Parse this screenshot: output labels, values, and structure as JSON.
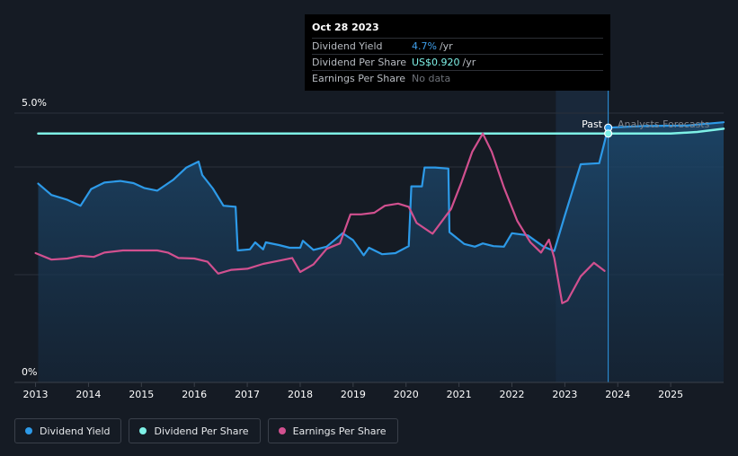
{
  "tooltip": {
    "date": "Oct 28 2023",
    "rows": [
      {
        "label": "Dividend Yield",
        "value": "4.7%",
        "unit": "/yr"
      },
      {
        "label": "Dividend Per Share",
        "value": "US$0.920",
        "unit": "/yr"
      },
      {
        "label": "Earnings Per Share",
        "value": "No data"
      }
    ]
  },
  "annotations": {
    "past": "Past",
    "forecast": "Analysts Forecasts"
  },
  "legend": [
    {
      "label": "Dividend Yield",
      "color": "#2d9ae8"
    },
    {
      "label": "Dividend Per Share",
      "color": "#7ef0e6"
    },
    {
      "label": "Earnings Per Share",
      "color": "#d1508f"
    }
  ],
  "chart_data": {
    "type": "line",
    "title": "",
    "xlabel": "",
    "ylabel": "",
    "x_ticks": [
      "2013",
      "2014",
      "2015",
      "2016",
      "2017",
      "2018",
      "2019",
      "2020",
      "2021",
      "2022",
      "2023",
      "2024",
      "2025"
    ],
    "y_ticks": [
      "5.0%",
      "0%"
    ],
    "xlim": [
      2012.6,
      2026.0
    ],
    "ylim": [
      0,
      5.0
    ],
    "past_forecast_split": 2023.82,
    "forecast_region_start": 2022.83,
    "series": [
      {
        "name": "Dividend Yield",
        "color": "#2d9ae8",
        "area": true,
        "points": [
          [
            2013.05,
            3.69
          ],
          [
            2013.3,
            3.48
          ],
          [
            2013.6,
            3.39
          ],
          [
            2013.85,
            3.28
          ],
          [
            2014.05,
            3.59
          ],
          [
            2014.3,
            3.71
          ],
          [
            2014.6,
            3.74
          ],
          [
            2014.85,
            3.7
          ],
          [
            2015.05,
            3.61
          ],
          [
            2015.3,
            3.56
          ],
          [
            2015.6,
            3.76
          ],
          [
            2015.85,
            3.99
          ],
          [
            2016.08,
            4.1
          ],
          [
            2016.15,
            3.85
          ],
          [
            2016.35,
            3.6
          ],
          [
            2016.55,
            3.28
          ],
          [
            2016.78,
            3.26
          ],
          [
            2016.82,
            2.45
          ],
          [
            2017.05,
            2.47
          ],
          [
            2017.15,
            2.6
          ],
          [
            2017.3,
            2.47
          ],
          [
            2017.35,
            2.6
          ],
          [
            2017.6,
            2.55
          ],
          [
            2017.8,
            2.5
          ],
          [
            2018.0,
            2.5
          ],
          [
            2018.05,
            2.63
          ],
          [
            2018.25,
            2.46
          ],
          [
            2018.5,
            2.52
          ],
          [
            2018.8,
            2.77
          ],
          [
            2019.0,
            2.64
          ],
          [
            2019.2,
            2.36
          ],
          [
            2019.3,
            2.5
          ],
          [
            2019.55,
            2.38
          ],
          [
            2019.8,
            2.4
          ],
          [
            2020.05,
            2.53
          ],
          [
            2020.1,
            3.64
          ],
          [
            2020.3,
            3.64
          ],
          [
            2020.35,
            3.99
          ],
          [
            2020.55,
            3.99
          ],
          [
            2020.8,
            3.97
          ],
          [
            2020.82,
            2.79
          ],
          [
            2021.1,
            2.57
          ],
          [
            2021.3,
            2.52
          ],
          [
            2021.45,
            2.58
          ],
          [
            2021.65,
            2.53
          ],
          [
            2021.85,
            2.52
          ],
          [
            2022.0,
            2.77
          ],
          [
            2022.3,
            2.73
          ],
          [
            2022.6,
            2.52
          ],
          [
            2022.8,
            2.44
          ],
          [
            2023.0,
            3.1
          ],
          [
            2023.3,
            4.05
          ],
          [
            2023.65,
            4.07
          ],
          [
            2023.82,
            4.73
          ],
          [
            2024.5,
            4.76
          ],
          [
            2025.3,
            4.77
          ],
          [
            2026.0,
            4.83
          ]
        ]
      },
      {
        "name": "Dividend Per Share",
        "color": "#7ef0e6",
        "area": false,
        "points": [
          [
            2013.05,
            4.62
          ],
          [
            2023.82,
            4.62
          ],
          [
            2025.0,
            4.62
          ],
          [
            2025.5,
            4.65
          ],
          [
            2026.0,
            4.71
          ]
        ]
      },
      {
        "name": "Earnings Per Share",
        "color": "#d1508f",
        "area": false,
        "points": [
          [
            2013.0,
            2.4
          ],
          [
            2013.3,
            2.28
          ],
          [
            2013.6,
            2.3
          ],
          [
            2013.85,
            2.35
          ],
          [
            2014.1,
            2.33
          ],
          [
            2014.3,
            2.41
          ],
          [
            2014.65,
            2.45
          ],
          [
            2015.0,
            2.45
          ],
          [
            2015.3,
            2.45
          ],
          [
            2015.5,
            2.41
          ],
          [
            2015.7,
            2.31
          ],
          [
            2016.0,
            2.3
          ],
          [
            2016.25,
            2.24
          ],
          [
            2016.45,
            2.02
          ],
          [
            2016.7,
            2.09
          ],
          [
            2017.0,
            2.11
          ],
          [
            2017.3,
            2.2
          ],
          [
            2017.6,
            2.26
          ],
          [
            2017.85,
            2.31
          ],
          [
            2018.0,
            2.05
          ],
          [
            2018.25,
            2.19
          ],
          [
            2018.5,
            2.48
          ],
          [
            2018.75,
            2.58
          ],
          [
            2018.95,
            3.12
          ],
          [
            2019.15,
            3.12
          ],
          [
            2019.4,
            3.15
          ],
          [
            2019.6,
            3.28
          ],
          [
            2019.85,
            3.32
          ],
          [
            2020.05,
            3.26
          ],
          [
            2020.2,
            2.96
          ],
          [
            2020.5,
            2.76
          ],
          [
            2020.85,
            3.22
          ],
          [
            2021.05,
            3.72
          ],
          [
            2021.25,
            4.28
          ],
          [
            2021.45,
            4.62
          ],
          [
            2021.62,
            4.28
          ],
          [
            2021.85,
            3.62
          ],
          [
            2022.1,
            3.0
          ],
          [
            2022.35,
            2.6
          ],
          [
            2022.55,
            2.41
          ],
          [
            2022.7,
            2.65
          ],
          [
            2022.8,
            2.31
          ],
          [
            2022.95,
            1.47
          ],
          [
            2023.05,
            1.52
          ],
          [
            2023.3,
            1.97
          ],
          [
            2023.55,
            2.22
          ],
          [
            2023.75,
            2.07
          ]
        ]
      }
    ]
  }
}
